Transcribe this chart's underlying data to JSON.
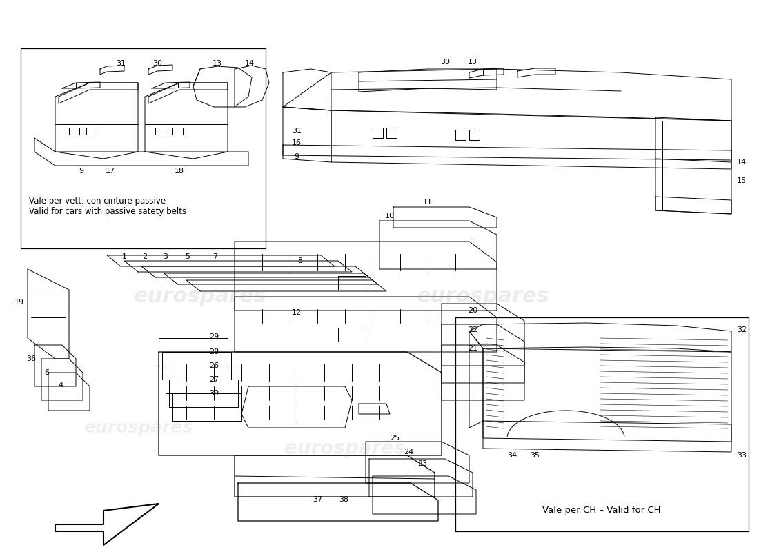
{
  "bg_color": "#ffffff",
  "note1": "Vale per vett. con cinture passive",
  "note2": "Valid for cars with passive satety belts",
  "ch_note": "Vale per CH – Valid for CH",
  "watermark": "eurospares"
}
